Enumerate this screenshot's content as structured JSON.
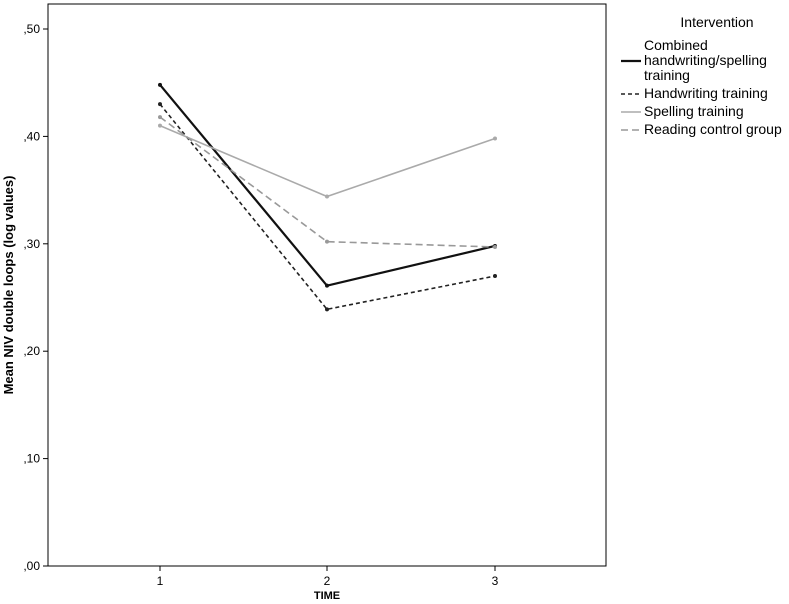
{
  "chart_data": {
    "type": "line",
    "title": "",
    "xlabel": "TIME",
    "ylabel": "Mean NIV double loops (log values)",
    "x": [
      "1",
      "2",
      "3"
    ],
    "ylim": [
      0,
      0.5
    ],
    "yticks": [
      0,
      0.1,
      0.2,
      0.3,
      0.4,
      0.5
    ],
    "ytick_labels": [
      ",00",
      ",10",
      ",20",
      ",30",
      ",40",
      ",50"
    ],
    "grid": false,
    "legend_title": "Intervention",
    "legend_position": "right",
    "series": [
      {
        "name_lines": [
          "Combined",
          "handwriting/spelling",
          "training"
        ],
        "values": [
          0.448,
          0.261,
          0.298
        ],
        "color": "#111111",
        "style": "solid"
      },
      {
        "name": "Handwriting training",
        "values": [
          0.43,
          0.239,
          0.27
        ],
        "color": "#222222",
        "style": "dashed-fine"
      },
      {
        "name": "Spelling training",
        "values": [
          0.41,
          0.344,
          0.398
        ],
        "color": "#aaaaaa",
        "style": "solid"
      },
      {
        "name": "Reading control group",
        "values": [
          0.418,
          0.302,
          0.297
        ],
        "color": "#999999",
        "style": "dashed"
      }
    ]
  }
}
